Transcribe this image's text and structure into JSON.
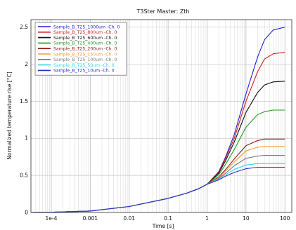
{
  "chart_data": {
    "type": "line",
    "title": "T3Ster Master: Zth",
    "xlabel": "Time [s]",
    "ylabel": "Normalized temperature rise [°C]",
    "x_scale": "log",
    "xlim": [
      3e-05,
      150
    ],
    "ylim": [
      0,
      2.6
    ],
    "x_ticks": [
      {
        "value": 0.0001,
        "label": "1e-4"
      },
      {
        "value": 0.001,
        "label": "0.001"
      },
      {
        "value": 0.01,
        "label": "0.01"
      },
      {
        "value": 0.1,
        "label": "0.1"
      },
      {
        "value": 1,
        "label": "1"
      },
      {
        "value": 10,
        "label": "10"
      },
      {
        "value": 100,
        "label": "100"
      }
    ],
    "y_ticks": [
      {
        "value": 0,
        "label": "0"
      },
      {
        "value": 0.5,
        "label": "0.5"
      },
      {
        "value": 1,
        "label": "1"
      },
      {
        "value": 1.5,
        "label": "1.5"
      },
      {
        "value": 2,
        "label": "2"
      },
      {
        "value": 2.5,
        "label": "2.5"
      }
    ],
    "grid": true,
    "legend_position": "top-left",
    "x": [
      3e-05,
      0.0001,
      0.001,
      0.01,
      0.1,
      0.3,
      0.6,
      1,
      2,
      3,
      5,
      10,
      20,
      30,
      50,
      100
    ],
    "series": [
      {
        "name": "Sample_B_T25_1000um -Ch. 0",
        "color": "#1f1fd6",
        "values": [
          0,
          0.003,
          0.02,
          0.08,
          0.19,
          0.26,
          0.32,
          0.38,
          0.55,
          0.75,
          1.05,
          1.6,
          2.1,
          2.33,
          2.46,
          2.5
        ]
      },
      {
        "name": "Sample_B_T25_800um -Ch. 0",
        "color": "#d61f1f",
        "values": [
          0,
          0.003,
          0.02,
          0.08,
          0.19,
          0.26,
          0.32,
          0.38,
          0.54,
          0.73,
          1.0,
          1.5,
          1.9,
          2.07,
          2.14,
          2.16
        ]
      },
      {
        "name": "Sample_B_T25_600um -Ch. 0",
        "color": "#111111",
        "values": [
          0,
          0.003,
          0.02,
          0.08,
          0.19,
          0.26,
          0.32,
          0.38,
          0.53,
          0.7,
          0.95,
          1.35,
          1.62,
          1.72,
          1.76,
          1.77
        ]
      },
      {
        "name": "Sample_B_T25_400um -Ch. 0",
        "color": "#229922",
        "values": [
          0,
          0.003,
          0.02,
          0.08,
          0.19,
          0.26,
          0.32,
          0.38,
          0.51,
          0.65,
          0.85,
          1.15,
          1.32,
          1.36,
          1.38,
          1.38
        ]
      },
      {
        "name": "Sample_B_T25_200um -Ch. 0",
        "color": "#8b1a1a",
        "values": [
          0,
          0.003,
          0.02,
          0.08,
          0.19,
          0.26,
          0.32,
          0.38,
          0.48,
          0.58,
          0.72,
          0.9,
          0.97,
          0.99,
          0.99,
          0.99
        ]
      },
      {
        "name": "Sample_B_T25_150um -Ch. 0",
        "color": "#f0a030",
        "values": [
          0,
          0.003,
          0.02,
          0.08,
          0.19,
          0.26,
          0.32,
          0.38,
          0.47,
          0.56,
          0.68,
          0.83,
          0.88,
          0.89,
          0.89,
          0.89
        ]
      },
      {
        "name": "Sample_B_T25_100um -Ch. 0",
        "color": "#7a7a7a",
        "values": [
          0,
          0.003,
          0.02,
          0.08,
          0.19,
          0.26,
          0.32,
          0.38,
          0.46,
          0.53,
          0.63,
          0.73,
          0.76,
          0.77,
          0.77,
          0.77
        ]
      },
      {
        "name": "Sample_B_T25_50um -Ch. 0",
        "color": "#3ad6e0",
        "values": [
          0,
          0.003,
          0.02,
          0.08,
          0.19,
          0.26,
          0.32,
          0.38,
          0.45,
          0.51,
          0.58,
          0.64,
          0.66,
          0.66,
          0.66,
          0.66
        ]
      },
      {
        "name": "Sample_B_T25_10um -Ch. 0",
        "color": "#2c2cc8",
        "values": [
          0,
          0.003,
          0.02,
          0.08,
          0.19,
          0.26,
          0.32,
          0.38,
          0.44,
          0.49,
          0.54,
          0.59,
          0.61,
          0.61,
          0.61,
          0.61
        ]
      }
    ]
  }
}
